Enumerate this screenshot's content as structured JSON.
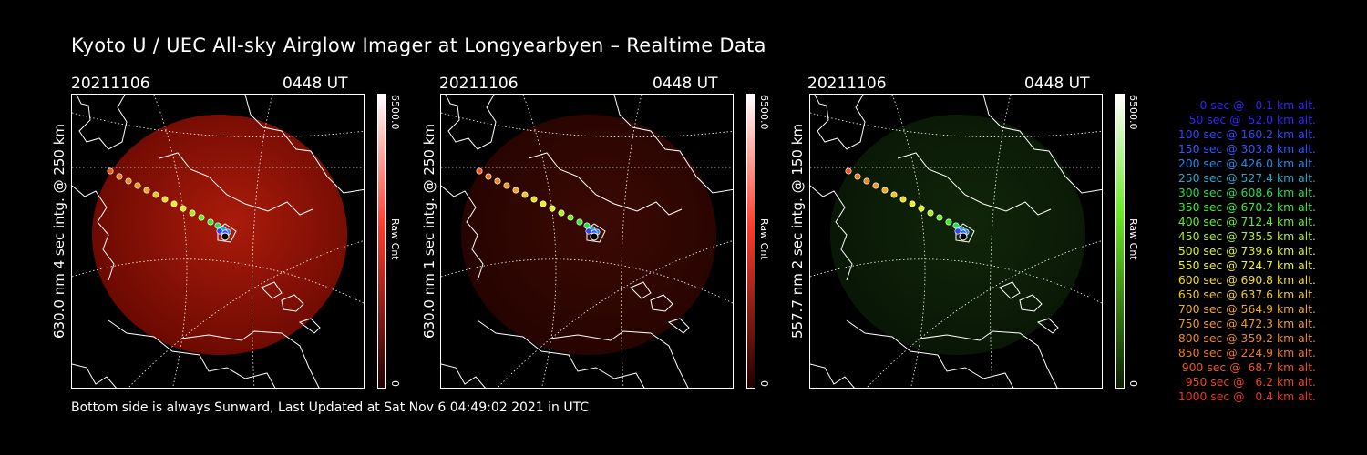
{
  "title": "Kyoto U / UEC All-sky Airglow Imager at Longyearbyen – Realtime Data",
  "footer": "Bottom side is always Sunward, Last Updated at Sat Nov  6 04:49:02 2021 in UTC",
  "panels": [
    {
      "date": "20211106",
      "ut": "0448 UT",
      "ylabel": "630.0 nm 4 sec intg. @ 250 km",
      "color": "#ff3b2a",
      "cb_max": "6500.0",
      "cb_min": "0",
      "cb_unit": "Raw Cnt",
      "brightness": 0.85
    },
    {
      "date": "20211106",
      "ut": "0448 UT",
      "ylabel": "630.0 nm 1 sec intg. @ 250 km",
      "color": "#ff3b2a",
      "cb_max": "6500.0",
      "cb_min": "0",
      "cb_unit": "Raw Cnt",
      "brightness": 0.3
    },
    {
      "date": "20211106",
      "ut": "0448 UT",
      "ylabel": "557.7 nm 2 sec intg. @ 150 km",
      "color": "#33dd22",
      "cb_max": "6500.0",
      "cb_min": "0",
      "cb_unit": "Raw Cnt",
      "brightness": 0.35
    }
  ],
  "legend": [
    {
      "text": "0 sec @   0.1 km alt.",
      "color": "#3322ff"
    },
    {
      "text": "50 sec @  52.0 km alt.",
      "color": "#3322ff"
    },
    {
      "text": "100 sec @ 160.2 km alt.",
      "color": "#3344ff"
    },
    {
      "text": "150 sec @ 303.8 km alt.",
      "color": "#3355ff"
    },
    {
      "text": "200 sec @ 426.0 km alt.",
      "color": "#2288ee"
    },
    {
      "text": "250 sec @ 527.4 km alt.",
      "color": "#22aacc"
    },
    {
      "text": "300 sec @ 608.6 km alt.",
      "color": "#22dd55"
    },
    {
      "text": "350 sec @ 670.2 km alt.",
      "color": "#33ee33"
    },
    {
      "text": "400 sec @ 712.4 km alt.",
      "color": "#66ee22"
    },
    {
      "text": "450 sec @ 735.5 km alt.",
      "color": "#aaee22"
    },
    {
      "text": "500 sec @ 739.6 km alt.",
      "color": "#ddee22"
    },
    {
      "text": "550 sec @ 724.7 km alt.",
      "color": "#eeee22"
    },
    {
      "text": "600 sec @ 690.8 km alt.",
      "color": "#eedd22"
    },
    {
      "text": "650 sec @ 637.6 km alt.",
      "color": "#eec822"
    },
    {
      "text": "700 sec @ 564.9 km alt.",
      "color": "#eeaa22"
    },
    {
      "text": "750 sec @ 472.3 km alt.",
      "color": "#ee9922"
    },
    {
      "text": "800 sec @ 359.2 km alt.",
      "color": "#ee8822"
    },
    {
      "text": "850 sec @ 224.9 km alt.",
      "color": "#ee7722"
    },
    {
      "text": "900 sec @  68.7 km alt.",
      "color": "#ee5522"
    },
    {
      "text": "950 sec @   6.2 km alt.",
      "color": "#ee4422"
    },
    {
      "text": "1000 sec @   0.4 km alt.",
      "color": "#ee3322"
    }
  ]
}
